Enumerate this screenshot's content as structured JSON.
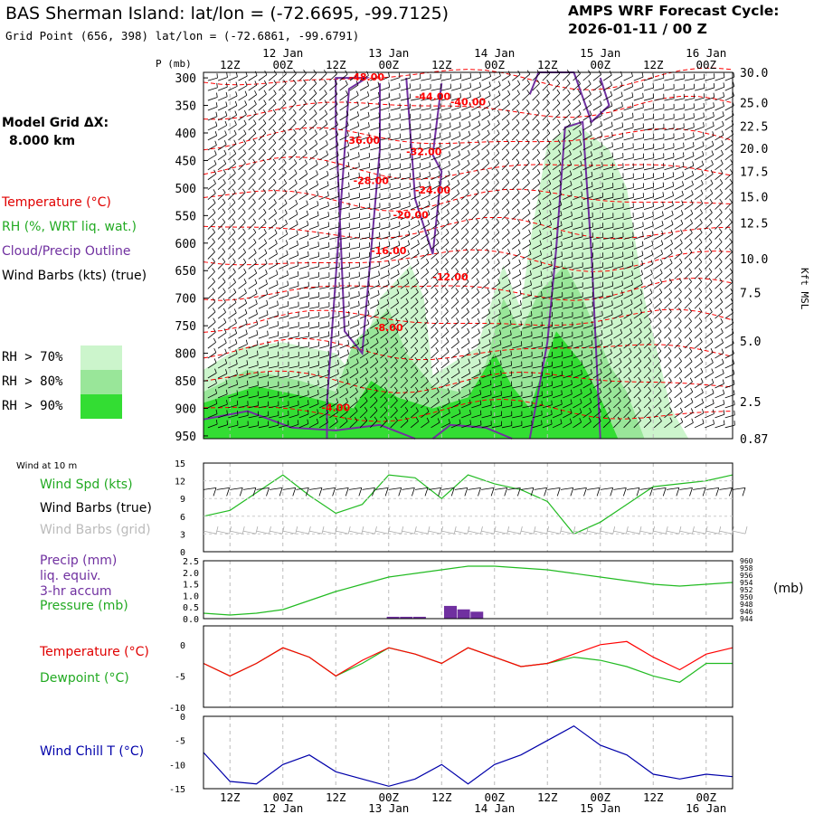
{
  "header": {
    "title": "BAS Sherman Island:  lat/lon = (-72.6695, -99.7125)",
    "grid_point": "Grid Point (656, 398) lat/lon = (-72.6861, -99.6791)",
    "cycle_line1": "AMPS WRF Forecast Cycle:",
    "cycle_line2": "2026-01-11 / 00  Z",
    "model_grid_label": "Model Grid ΔX:",
    "model_grid_value": "8.000 km"
  },
  "legend": {
    "temperature": "Temperature (°C)",
    "rh": "RH (%, WRT liq. wat.)",
    "cloud": "Cloud/Precip Outline",
    "wind_barbs": "Wind Barbs (kts) (true)",
    "rh70": "RH > 70%",
    "rh80": "RH > 80%",
    "rh90": "RH > 90%"
  },
  "colors": {
    "temperature": "#ff0000",
    "rh": "#22bb22",
    "cloud": "#7030a0",
    "rh70": "#ccf5cc",
    "rh80": "#99e699",
    "rh90": "#33dd33",
    "windchill": "#0000aa",
    "pressure": "#22bb22",
    "precip": "#7030a0"
  },
  "time_axis": {
    "top_hours": [
      "12Z",
      "00Z",
      "12Z",
      "00Z",
      "12Z",
      "00Z",
      "12Z",
      "00Z",
      "12Z",
      "00Z"
    ],
    "top_dates": [
      "12 Jan",
      "13 Jan",
      "14 Jan",
      "15 Jan",
      "16 Jan"
    ],
    "bottom_hours": [
      "12Z",
      "00Z",
      "12Z",
      "00Z",
      "12Z",
      "00Z",
      "12Z",
      "00Z",
      "12Z",
      "00Z"
    ],
    "bottom_dates": [
      "12 Jan",
      "13 Jan",
      "14 Jan",
      "15 Jan",
      "16 Jan"
    ]
  },
  "chart_data": [
    {
      "type": "heatmap",
      "name": "cross-section",
      "ylabel_left": "P (mb)",
      "ylabel_right": "Kft MSL",
      "pressure_ticks": [
        300,
        350,
        400,
        450,
        500,
        550,
        600,
        650,
        700,
        750,
        800,
        850,
        900,
        950
      ],
      "height_ticks": [
        "30.0",
        "25.0",
        "22.5",
        "20.0",
        "17.5",
        "15.0",
        "12.5",
        "10.0",
        "7.5",
        "5.0",
        "2.5",
        "0.87"
      ],
      "temperature_labels": [
        "-48.00",
        "-44.00",
        "-40.00",
        "-36.00",
        "-32.00",
        "-28.00",
        "-24.00",
        "-20.00",
        "-16.00",
        "-12.00",
        "-8.00",
        "-4.00"
      ]
    },
    {
      "type": "line",
      "name": "wind-10m",
      "panel_title": "Wind at 10 m",
      "series_labels": [
        "Wind Spd (kts)",
        "Wind Barbs (true)",
        "Wind Barbs (grid)"
      ],
      "y_ticks": [
        "15",
        "12",
        "9",
        "6",
        "3",
        "0"
      ],
      "ylim": [
        0,
        15
      ],
      "x_hours": [
        0,
        6,
        12,
        18,
        24,
        30,
        36,
        42,
        48,
        54,
        60,
        66,
        72,
        78,
        84,
        90,
        96,
        102,
        108,
        114,
        120
      ],
      "wind_speed": [
        6,
        7,
        10,
        13,
        9.5,
        6.5,
        8,
        13,
        12.5,
        9,
        13,
        11.5,
        10.5,
        8.5,
        3,
        5,
        8,
        11,
        11.5,
        12,
        13
      ]
    },
    {
      "type": "line",
      "name": "precip-pressure",
      "series_labels": [
        "Precip (mm)",
        "liq. equiv.",
        "3-hr accum",
        "Pressure (mb)"
      ],
      "precip_ticks": [
        "2.5",
        "2.0",
        "1.5",
        "1.0",
        "0.5",
        "0.0"
      ],
      "pressure_ticks": [
        "960",
        "958",
        "956",
        "954",
        "952",
        "950",
        "948",
        "946",
        "944"
      ],
      "right_unit": "(mb)",
      "x_hours": [
        0,
        6,
        12,
        18,
        24,
        30,
        36,
        42,
        48,
        54,
        60,
        66,
        72,
        78,
        84,
        90,
        96,
        102,
        108,
        114,
        120
      ],
      "pressure_mb": [
        945.5,
        945,
        945.5,
        946.5,
        949,
        951.5,
        953.5,
        955.5,
        956.5,
        957.5,
        958.5,
        958.5,
        958,
        957.5,
        956.5,
        955.5,
        954.5,
        953.5,
        953,
        953.5,
        954
      ],
      "precip_mm": [
        {
          "x": 43,
          "v": 0.08
        },
        {
          "x": 46,
          "v": 0.08
        },
        {
          "x": 49,
          "v": 0.08
        },
        {
          "x": 56,
          "v": 0.55
        },
        {
          "x": 59,
          "v": 0.4
        },
        {
          "x": 62,
          "v": 0.3
        }
      ]
    },
    {
      "type": "line",
      "name": "temperature-dewpoint",
      "series_labels": [
        "Temperature (°C)",
        "Dewpoint (°C)"
      ],
      "y_ticks": [
        "0",
        "-5",
        "-10"
      ],
      "ylim": [
        -10,
        3
      ],
      "x_hours": [
        0,
        6,
        12,
        18,
        24,
        30,
        36,
        42,
        48,
        54,
        60,
        66,
        72,
        78,
        84,
        90,
        96,
        102,
        108,
        114,
        120
      ],
      "temperature": [
        -3,
        -5,
        -3,
        -0.5,
        -2,
        -5,
        -2.5,
        -0.5,
        -1.5,
        -3,
        -0.5,
        -2,
        -3.5,
        -3,
        -1.5,
        0,
        0.5,
        -2,
        -4,
        -1.5,
        -0.5
      ],
      "dewpoint": [
        -3,
        -5,
        -3,
        -0.5,
        -2,
        -5,
        -3,
        -0.5,
        -1.5,
        -3,
        -0.5,
        -2,
        -3.5,
        -3,
        -2,
        -2.5,
        -3.5,
        -5,
        -6,
        -3,
        -3
      ]
    },
    {
      "type": "line",
      "name": "wind-chill",
      "series_labels": [
        "Wind Chill T (°C)"
      ],
      "y_ticks": [
        "0",
        "-5",
        "-10",
        "-15"
      ],
      "ylim": [
        -15,
        0
      ],
      "x_hours": [
        0,
        6,
        12,
        18,
        24,
        30,
        36,
        42,
        48,
        54,
        60,
        66,
        72,
        78,
        84,
        90,
        96,
        102,
        108,
        114,
        120
      ],
      "wind_chill": [
        -7.5,
        -13.5,
        -14,
        -10,
        -8,
        -11.5,
        -13,
        -14.5,
        -13,
        -10,
        -14,
        -10,
        -8,
        -5,
        -2,
        -6,
        -8,
        -12,
        -13,
        -12,
        -12.5
      ]
    }
  ]
}
